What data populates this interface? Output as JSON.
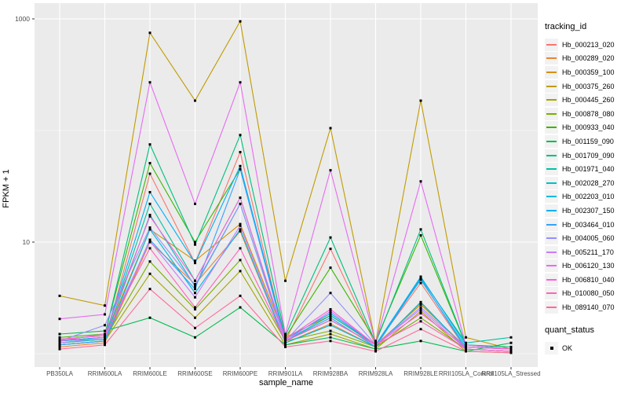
{
  "chart_data": {
    "type": "line",
    "xlabel": "sample_name",
    "ylabel": "FPKM + 1",
    "y_scale": "log10",
    "ylim_px_note": "log axis, labeled breaks at 10 and 1000, minor gridlines at 1 and 100",
    "y_ticks": [
      {
        "label": "1000",
        "value": 1000
      },
      {
        "label": "10",
        "value": 10
      }
    ],
    "y_minor_gridlines": [
      100,
      1
    ],
    "panel_bg": "#ebebeb",
    "gridline_color": "#ffffff",
    "point_color": "#000000",
    "categories": [
      "PB350LA",
      "RRIM600LA",
      "RRIM600LE",
      "RRIM600SE",
      "RRIM600PE",
      "RRIM901LA",
      "RRIM928BA",
      "RRIM928LA",
      "RRIM928LE",
      "RRII105LA_Control",
      "RRII105LA_Stressed"
    ],
    "series": [
      {
        "name": "Hb_000213_020",
        "color": "#F8766D",
        "values": [
          1.2,
          1.3,
          41,
          6.5,
          64,
          1.3,
          8.7,
          1.2,
          4.3,
          1.1,
          1.05
        ]
      },
      {
        "name": "Hb_000289_020",
        "color": "#EA8331",
        "values": [
          1.15,
          1.25,
          10,
          4.2,
          12.5,
          1.25,
          1.85,
          1.15,
          2.85,
          1.1,
          1.05
        ]
      },
      {
        "name": "Hb_000359_100",
        "color": "#D89000",
        "values": [
          1.3,
          1.4,
          13,
          6.8,
          14.5,
          1.4,
          2.2,
          1.2,
          2.75,
          1.15,
          1.1
        ]
      },
      {
        "name": "Hb_000375_260",
        "color": "#C09B00",
        "values": [
          3.3,
          2.7,
          750,
          185,
          950,
          4.5,
          105,
          1.25,
          185,
          1.4,
          1.1
        ]
      },
      {
        "name": "Hb_000445_260",
        "color": "#A3A500",
        "values": [
          1.2,
          1.3,
          5.2,
          2.1,
          5.5,
          1.2,
          1.5,
          1.1,
          2.4,
          1.05,
          1.02
        ]
      },
      {
        "name": "Hb_000878_080",
        "color": "#7CAE00",
        "values": [
          1.25,
          1.35,
          6.7,
          2.5,
          6.9,
          1.3,
          1.6,
          1.15,
          2.1,
          1.1,
          1.05
        ]
      },
      {
        "name": "Hb_000933_040",
        "color": "#39B600",
        "values": [
          1.4,
          1.5,
          51,
          10,
          45,
          1.4,
          5.9,
          1.3,
          11.5,
          1.2,
          1.1
        ]
      },
      {
        "name": "Hb_001159_090",
        "color": "#00BB4E",
        "values": [
          1.5,
          1.6,
          2.1,
          1.4,
          2.6,
          1.2,
          1.4,
          1.1,
          1.3,
          1.05,
          1.25
        ]
      },
      {
        "name": "Hb_001709_090",
        "color": "#00BF7D",
        "values": [
          1.35,
          1.45,
          75,
          9.5,
          91,
          1.45,
          11,
          1.25,
          13,
          1.2,
          1.15
        ]
      },
      {
        "name": "Hb_001971_040",
        "color": "#00C1A3",
        "values": [
          1.3,
          1.4,
          22,
          4.5,
          25,
          1.3,
          2.2,
          1.2,
          4.8,
          1.25,
          1.4
        ]
      },
      {
        "name": "Hb_002028_270",
        "color": "#00BFC4",
        "values": [
          1.25,
          1.35,
          17.5,
          4.0,
          22,
          1.3,
          2.0,
          1.2,
          4.6,
          1.15,
          1.1
        ]
      },
      {
        "name": "Hb_002203_010",
        "color": "#00BAE0",
        "values": [
          1.2,
          1.3,
          13,
          3.5,
          13,
          1.25,
          1.8,
          1.15,
          2.9,
          1.1,
          1.05
        ]
      },
      {
        "name": "Hb_002307_150",
        "color": "#00B0F6",
        "values": [
          1.3,
          1.4,
          28,
          6.5,
          48,
          1.35,
          2.3,
          1.2,
          4.9,
          1.2,
          1.1
        ]
      },
      {
        "name": "Hb_003464_010",
        "color": "#35A2FF",
        "values": [
          1.2,
          1.3,
          10.5,
          3.8,
          45,
          1.3,
          2.1,
          1.15,
          4.7,
          1.1,
          1.05
        ]
      },
      {
        "name": "Hb_004005_060",
        "color": "#9590FF",
        "values": [
          1.3,
          1.8,
          13.5,
          4.1,
          22,
          1.3,
          3.5,
          1.2,
          2.6,
          1.15,
          1.1
        ]
      },
      {
        "name": "Hb_005211_170",
        "color": "#C77CFF",
        "values": [
          1.25,
          1.4,
          10.2,
          3.2,
          14,
          1.3,
          2.4,
          1.2,
          2.5,
          1.1,
          1.05
        ]
      },
      {
        "name": "Hb_006120_130",
        "color": "#E76BF3",
        "values": [
          2.05,
          2.25,
          270,
          22,
          270,
          1.5,
          44,
          1.25,
          35,
          1.2,
          1.1
        ]
      },
      {
        "name": "Hb_006810_040",
        "color": "#FA62DB",
        "values": [
          1.3,
          1.5,
          17,
          4.5,
          25,
          1.35,
          2.5,
          1.2,
          2.3,
          1.15,
          1.1
        ]
      },
      {
        "name": "Hb_010080_050",
        "color": "#FF62BC",
        "values": [
          1.35,
          1.45,
          8.8,
          2.6,
          8.8,
          1.3,
          2.0,
          1.2,
          1.95,
          1.1,
          1.05
        ]
      },
      {
        "name": "Hb_089140_070",
        "color": "#FF6A98",
        "values": [
          1.1,
          1.2,
          3.8,
          1.7,
          3.3,
          1.15,
          1.3,
          1.05,
          1.66,
          1.05,
          1.02
        ]
      }
    ],
    "legend": {
      "color_title": "tracking_id",
      "shape_title": "quant_status",
      "shape_items": [
        {
          "label": "OK",
          "shape": "black-square"
        }
      ]
    }
  }
}
